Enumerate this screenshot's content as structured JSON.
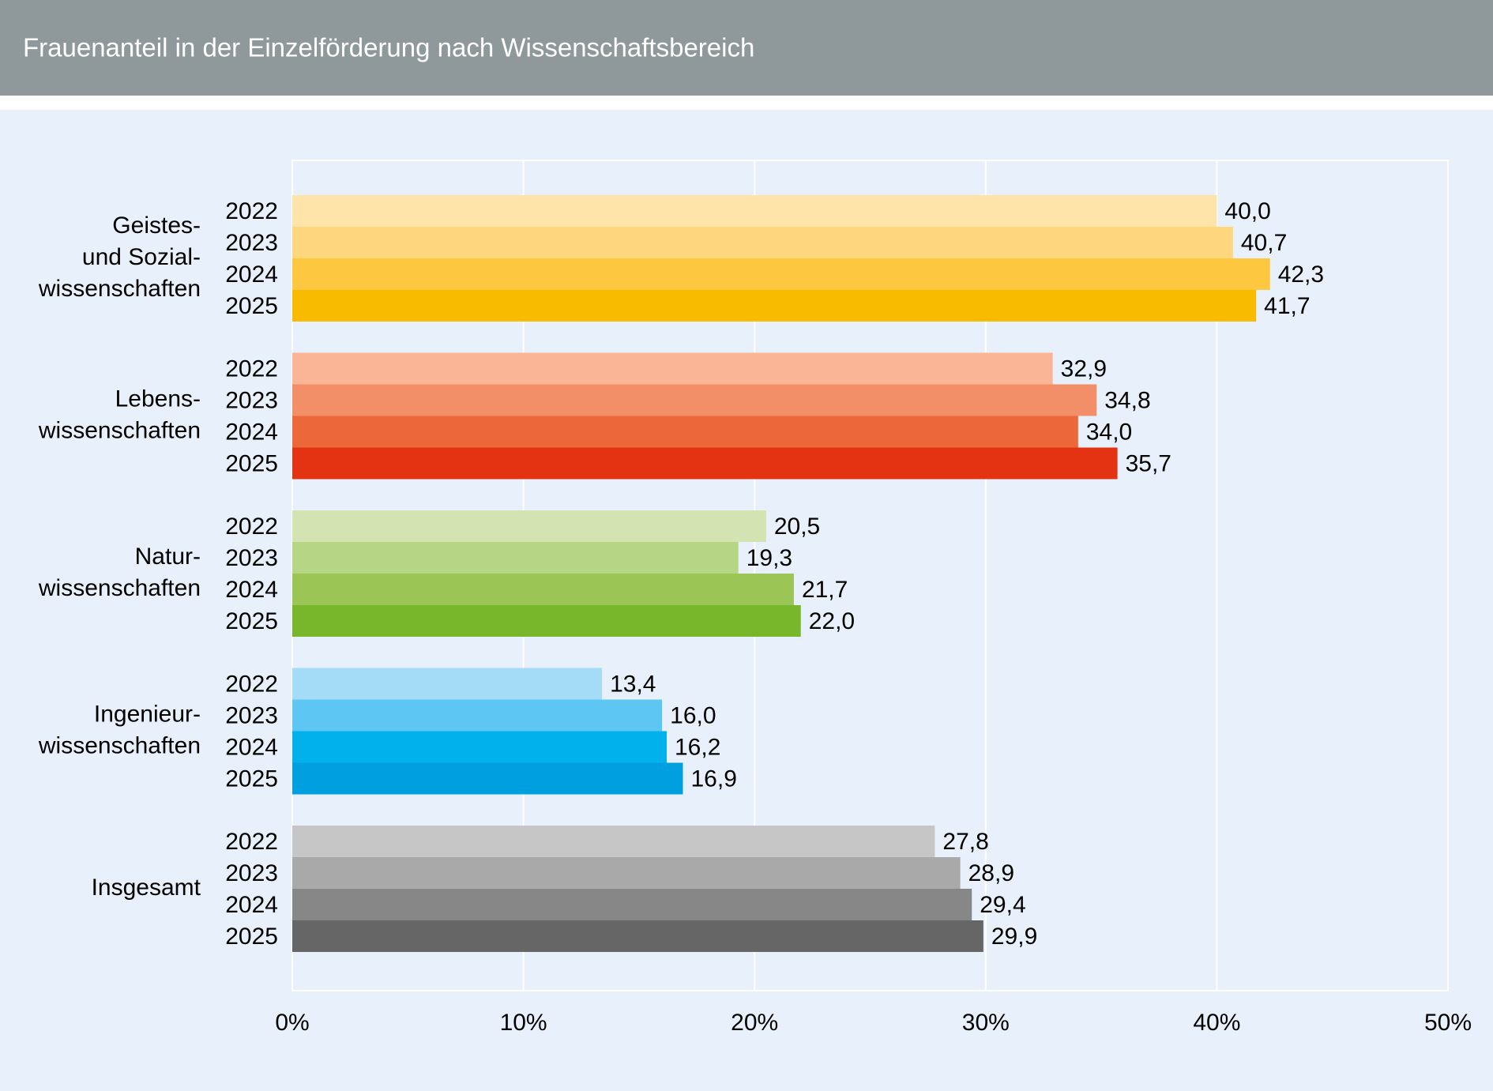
{
  "chart_data": {
    "type": "grouped-hbar",
    "title": "Frauenanteil in der Einzelförderung nach Wissenschaftsbereich",
    "categories": [
      [
        "Geistes-",
        "und Sozial-",
        "wissenschaften"
      ],
      [
        "Lebens-",
        "wissenschaften"
      ],
      [
        "Natur-",
        "wissenschaften"
      ],
      [
        "Ingenieur-",
        "wissenschaften"
      ],
      [
        "Insgesamt"
      ]
    ],
    "series": [
      {
        "name": "2022",
        "values": [
          40.0,
          32.9,
          20.5,
          13.4,
          27.8
        ],
        "value_labels": [
          "40,0",
          "32,9",
          "20,5",
          "13,4",
          "27,8"
        ]
      },
      {
        "name": "2023",
        "values": [
          40.7,
          34.8,
          19.3,
          16.0,
          28.9
        ],
        "value_labels": [
          "40,7",
          "34,8",
          "19,3",
          "16,0",
          "28,9"
        ]
      },
      {
        "name": "2024",
        "values": [
          42.3,
          34.0,
          21.7,
          16.2,
          29.4
        ],
        "value_labels": [
          "42,3",
          "34,0",
          "21,7",
          "16,2",
          "29,4"
        ]
      },
      {
        "name": "2025",
        "values": [
          41.7,
          35.7,
          22.0,
          16.9,
          29.9
        ],
        "value_labels": [
          "41,7",
          "35,7",
          "22,0",
          "16,9",
          "29,9"
        ]
      }
    ],
    "colors": [
      [
        "#fee4a8",
        "#fed67e",
        "#fec740",
        "#f9bb00"
      ],
      [
        "#f9b596",
        "#f28f68",
        "#ec673a",
        "#e43312"
      ],
      [
        "#d3e3b1",
        "#b7d685",
        "#9bc656",
        "#78b72b"
      ],
      [
        "#a4dcf8",
        "#5dc6f2",
        "#00b1eb",
        "#009fe0"
      ],
      [
        "#c6c6c6",
        "#a9a9a9",
        "#878787",
        "#666666"
      ]
    ],
    "xlim": [
      0,
      50
    ],
    "xticks": [
      {
        "value": 0,
        "label": "0%"
      },
      {
        "value": 10,
        "label": "10%"
      },
      {
        "value": 20,
        "label": "20%"
      },
      {
        "value": 30,
        "label": "30%"
      },
      {
        "value": 40,
        "label": "40%"
      },
      {
        "value": 50,
        "label": "50%"
      }
    ],
    "grid": true
  }
}
